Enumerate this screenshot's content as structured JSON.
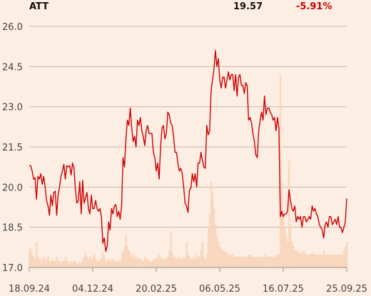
{
  "header": {
    "ticker": "ATT",
    "price": "19.57",
    "change": "-5.91%"
  },
  "colors": {
    "background": "#fdeee3",
    "line": "#cc0000",
    "volume": "#f7d3b8",
    "change": "#cc0000"
  },
  "chart_data": {
    "type": "line",
    "ylim": [
      17.0,
      26.0
    ],
    "yticks": [
      "26.0",
      "24.5",
      "23.0",
      "21.5",
      "20.0",
      "18.5",
      "17.0"
    ],
    "xticks": [
      "18.09.24",
      "04.12.24",
      "20.02.25",
      "06.05.25",
      "16.07.25",
      "25.09.25"
    ],
    "grid": true,
    "price": [
      20.8,
      20.8,
      20.6,
      20.3,
      20.35,
      19.55,
      20.4,
      20.3,
      20.5,
      20.1,
      20.4,
      20.0,
      19.5,
      19.3,
      18.95,
      19.7,
      19.3,
      19.8,
      19.85,
      18.95,
      19.7,
      20.0,
      20.4,
      20.6,
      20.85,
      20.3,
      20.8,
      20.75,
      20.8,
      20.45,
      20.9,
      20.7,
      19.9,
      19.4,
      19.5,
      20.2,
      19.0,
      20.25,
      19.4,
      19.6,
      19.8,
      19.2,
      19.0,
      19.7,
      19.2,
      19.2,
      19.5,
      19.2,
      19.1,
      19.2,
      18.9,
      17.9,
      18.1,
      17.6,
      17.8,
      18.7,
      18.4,
      19.2,
      19.0,
      19.3,
      19.35,
      18.9,
      19.1,
      18.8,
      19.3,
      21.1,
      20.75,
      21.8,
      22.5,
      22.3,
      22.95,
      22.2,
      21.7,
      21.9,
      21.5,
      22.5,
      22.3,
      22.6,
      22.1,
      21.9,
      21.55,
      22.1,
      22.3,
      22.0,
      22.0,
      22.0,
      21.3,
      21.1,
      20.6,
      20.9,
      20.3,
      21.5,
      22.2,
      22.3,
      21.8,
      22.0,
      22.8,
      22.7,
      22.4,
      22.3,
      21.9,
      21.3,
      21.3,
      20.9,
      20.6,
      20.7,
      20.5,
      20.0,
      19.4,
      19.3,
      19.05,
      19.9,
      19.95,
      20.5,
      20.2,
      20.5,
      20.0,
      20.9,
      20.9,
      21.3,
      21.0,
      20.75,
      20.7,
      22.3,
      21.95,
      22.1,
      23.6,
      24.0,
      24.4,
      25.1,
      24.5,
      24.8,
      24.0,
      23.7,
      24.1,
      24.1,
      23.7,
      24.0,
      24.3,
      24.0,
      24.2,
      24.2,
      23.6,
      24.2,
      23.4,
      24.1,
      24.2,
      23.8,
      23.8,
      23.5,
      23.9,
      23.8,
      22.5,
      22.6,
      22.4,
      22.0,
      21.7,
      21.2,
      21.1,
      22.1,
      22.5,
      22.8,
      22.5,
      23.4,
      22.7,
      22.95,
      22.95,
      22.8,
      22.7,
      22.5,
      22.6,
      22.1,
      22.6,
      22.2,
      18.9,
      19.1,
      18.9,
      19.0,
      19.0,
      19.1,
      19.9,
      19.5,
      19.2,
      19.1,
      19.3,
      18.7,
      18.9,
      18.8,
      18.9,
      18.5,
      18.9,
      18.9,
      18.7,
      18.8,
      18.9,
      18.8,
      19.3,
      19.1,
      19.2,
      19.0,
      18.9,
      18.6,
      18.5,
      18.4,
      18.1,
      18.6,
      18.7,
      18.5,
      18.9,
      18.9,
      18.6,
      18.7,
      18.8,
      18.6,
      18.9,
      18.5,
      18.5,
      18.3,
      18.5,
      18.7,
      19.57
    ],
    "volume_max": 1.0,
    "volume": [
      0.08,
      0.09,
      0.06,
      0.05,
      0.04,
      0.12,
      0.05,
      0.04,
      0.03,
      0.04,
      0.05,
      0.03,
      0.04,
      0.05,
      0.03,
      0.03,
      0.04,
      0.03,
      0.03,
      0.05,
      0.03,
      0.03,
      0.02,
      0.03,
      0.03,
      0.05,
      0.03,
      0.03,
      0.02,
      0.03,
      0.03,
      0.03,
      0.03,
      0.02,
      0.02,
      0.03,
      0.02,
      0.04,
      0.05,
      0.07,
      0.05,
      0.04,
      0.05,
      0.04,
      0.05,
      0.06,
      0.04,
      0.03,
      0.03,
      0.04,
      0.04,
      0.07,
      0.05,
      0.03,
      0.03,
      0.04,
      0.03,
      0.04,
      0.04,
      0.03,
      0.03,
      0.03,
      0.03,
      0.03,
      0.06,
      0.08,
      0.1,
      0.15,
      0.1,
      0.08,
      0.07,
      0.05,
      0.06,
      0.05,
      0.04,
      0.05,
      0.04,
      0.04,
      0.04,
      0.03,
      0.05,
      0.04,
      0.04,
      0.03,
      0.03,
      0.03,
      0.04,
      0.04,
      0.05,
      0.04,
      0.06,
      0.05,
      0.04,
      0.04,
      0.04,
      0.04,
      0.05,
      0.08,
      0.17,
      0.07,
      0.05,
      0.05,
      0.04,
      0.04,
      0.05,
      0.04,
      0.04,
      0.05,
      0.04,
      0.12,
      0.06,
      0.05,
      0.04,
      0.04,
      0.05,
      0.04,
      0.06,
      0.05,
      0.05,
      0.08,
      0.12,
      0.05,
      0.04,
      0.06,
      0.18,
      0.25,
      0.4,
      0.35,
      0.28,
      0.2,
      0.15,
      0.12,
      0.1,
      0.09,
      0.08,
      0.08,
      0.07,
      0.07,
      0.06,
      0.06,
      0.06,
      0.06,
      0.05,
      0.05,
      0.05,
      0.05,
      0.05,
      0.05,
      0.05,
      0.05,
      0.05,
      0.05,
      0.06,
      0.06,
      0.05,
      0.05,
      0.05,
      0.05,
      0.05,
      0.05,
      0.05,
      0.05,
      0.05,
      0.06,
      0.05,
      0.05,
      0.05,
      0.05,
      0.05,
      0.05,
      0.05,
      0.06,
      0.06,
      0.06,
      0.9,
      0.4,
      0.25,
      0.18,
      0.15,
      0.12,
      0.5,
      0.2,
      0.12,
      0.1,
      0.08,
      0.08,
      0.07,
      0.07,
      0.07,
      0.06,
      0.08,
      0.07,
      0.06,
      0.06,
      0.06,
      0.06,
      0.07,
      0.06,
      0.06,
      0.06,
      0.06,
      0.06,
      0.06,
      0.06,
      0.08,
      0.06,
      0.06,
      0.06,
      0.06,
      0.06,
      0.06,
      0.06,
      0.06,
      0.06,
      0.06,
      0.06,
      0.06,
      0.06,
      0.08,
      0.1,
      0.12
    ]
  }
}
